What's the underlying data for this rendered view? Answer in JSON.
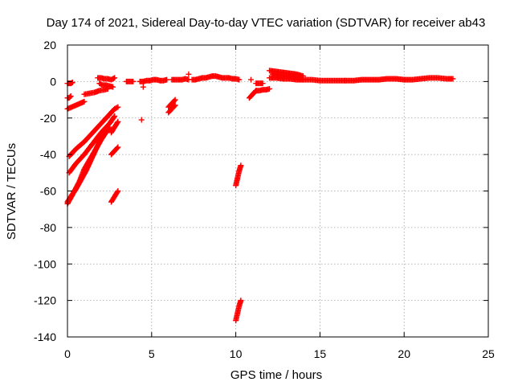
{
  "chart_data": {
    "type": "scatter",
    "title": "Day 174 of 2021, Sidereal Day-to-day VTEC variation (SDTVAR) for receiver ab43",
    "xlabel": "GPS time / hours",
    "ylabel": "SDTVAR / TECUs",
    "xlim": [
      0,
      25
    ],
    "ylim": [
      -140,
      20
    ],
    "xticks": [
      0,
      5,
      10,
      15,
      20,
      25
    ],
    "yticks": [
      20,
      0,
      -20,
      -40,
      -60,
      -80,
      -100,
      -120,
      -140
    ],
    "grid": true,
    "marker": "+",
    "color": "#ff0000",
    "series": [
      {
        "name": "sdtvar",
        "segments": [
          {
            "x": [
              0.0,
              0.1,
              0.2,
              0.3
            ],
            "y": [
              -1,
              -1,
              -1,
              -0.5
            ]
          },
          {
            "x": [
              0.0,
              0.1,
              0.2
            ],
            "y": [
              -9,
              -9,
              -8
            ]
          },
          {
            "x": [
              0.0,
              0.25,
              0.5,
              0.75,
              1.0
            ],
            "y": [
              -15,
              -14,
              -13,
              -12,
              -11
            ]
          },
          {
            "x": [
              0.1,
              0.5,
              1.0,
              1.5,
              2.0,
              2.4,
              2.7
            ],
            "y": [
              -41,
              -37,
              -33,
              -28,
              -23,
              -19,
              -16
            ]
          },
          {
            "x": [
              0.1,
              0.5,
              1.0,
              1.5,
              2.0,
              2.5,
              2.8
            ],
            "y": [
              -50,
              -45,
              -40,
              -34,
              -28,
              -23,
              -19
            ]
          },
          {
            "x": [
              0.0,
              0.3,
              0.7,
              1.0,
              1.5,
              2.0,
              2.5
            ],
            "y": [
              -67,
              -62,
              -55,
              -48,
              -40,
              -32,
              -25
            ]
          },
          {
            "x": [
              0.0,
              0.2,
              0.5,
              0.8,
              1.1,
              1.4,
              1.7,
              2.0
            ],
            "y": [
              -66,
              -63,
              -59,
              -54,
              -49,
              -43,
              -37,
              -31
            ]
          },
          {
            "x": [
              1.0,
              1.3,
              1.6,
              1.9,
              2.2,
              2.4
            ],
            "y": [
              -7,
              -6.5,
              -6,
              -5,
              -4.5,
              -4
            ]
          },
          {
            "x": [
              1.8,
              2.0,
              2.2,
              2.4,
              2.6,
              2.8
            ],
            "y": [
              2,
              2,
              1.5,
              1.5,
              1,
              2
            ]
          },
          {
            "x": [
              1.9,
              2.1,
              2.3,
              2.5,
              2.7
            ],
            "y": [
              -1,
              -2,
              -2,
              -2.5,
              -3
            ]
          },
          {
            "x": [
              2.6,
              2.8,
              3.0
            ],
            "y": [
              -66,
              -63,
              -60
            ]
          },
          {
            "x": [
              2.6,
              2.8,
              3.0
            ],
            "y": [
              -40,
              -38,
              -36
            ]
          },
          {
            "x": [
              2.6,
              2.8,
              3.0
            ],
            "y": [
              -28,
              -25,
              -22
            ]
          },
          {
            "x": [
              2.6,
              2.8,
              3.0
            ],
            "y": [
              -17,
              -15,
              -14
            ]
          },
          {
            "x": [
              3.5,
              3.7,
              3.9
            ],
            "y": [
              0,
              0,
              0
            ]
          },
          {
            "x": [
              4.3,
              4.5,
              4.7,
              4.9,
              5.1,
              5.3,
              5.5,
              5.7,
              5.9
            ],
            "y": [
              0,
              0,
              0.5,
              0.5,
              1,
              1,
              0.5,
              0.5,
              1
            ]
          },
          {
            "x": [
              4.4
            ],
            "y": [
              -21
            ]
          },
          {
            "x": [
              4.5
            ],
            "y": [
              -3
            ]
          },
          {
            "x": [
              6.0,
              6.2,
              6.4
            ],
            "y": [
              -17,
              -15,
              -13
            ]
          },
          {
            "x": [
              6.0,
              6.2,
              6.4
            ],
            "y": [
              -14,
              -12,
              -10
            ]
          },
          {
            "x": [
              6.2,
              6.4,
              6.6,
              6.8,
              7.0,
              7.2
            ],
            "y": [
              1,
              1,
              1,
              1,
              1.5,
              1
            ]
          },
          {
            "x": [
              7.2
            ],
            "y": [
              4
            ]
          },
          {
            "x": [
              7.4,
              7.6,
              7.8,
              8.0,
              8.2,
              8.4,
              8.6,
              8.8,
              9.0,
              9.2,
              9.4,
              9.6,
              9.8,
              10.0,
              10.2
            ],
            "y": [
              1,
              1,
              1.5,
              2,
              2,
              2.5,
              3,
              3,
              2.5,
              2,
              2,
              2,
              1.5,
              1.5,
              1
            ]
          },
          {
            "x": [
              10.0,
              10.1,
              10.2,
              10.3
            ],
            "y": [
              -57,
              -53,
              -49,
              -46
            ]
          },
          {
            "x": [
              10.0,
              10.1,
              10.2,
              10.3
            ],
            "y": [
              -131,
              -127,
              -123,
              -120
            ]
          },
          {
            "x": [
              10.8,
              11.0,
              11.2
            ],
            "y": [
              -9,
              -7,
              -5
            ]
          },
          {
            "x": [
              10.9
            ],
            "y": [
              1
            ]
          },
          {
            "x": [
              11.2,
              11.4,
              11.6,
              11.8,
              12.0
            ],
            "y": [
              -5,
              -5,
              -4.5,
              -4.5,
              -4
            ]
          },
          {
            "x": [
              11.2,
              11.4,
              11.6
            ],
            "y": [
              -1,
              -1,
              -1
            ]
          },
          {
            "x": [
              12.0,
              12.4,
              12.8,
              13.2,
              13.6,
              14.0
            ],
            "y": [
              6,
              5.5,
              5,
              4.5,
              4,
              3
            ]
          },
          {
            "x": [
              12.0,
              12.4,
              12.8,
              13.2,
              13.6,
              14.0
            ],
            "y": [
              2,
              2,
              1.5,
              1.5,
              1,
              1
            ]
          },
          {
            "x": [
              12.2,
              12.6,
              13.0,
              13.4,
              13.8
            ],
            "y": [
              4,
              3.5,
              3,
              2.5,
              2
            ]
          },
          {
            "x": [
              14.0,
              14.5,
              15.0,
              15.5,
              16.0,
              16.5
            ],
            "y": [
              1,
              1,
              0.5,
              0.5,
              0.5,
              0.5
            ]
          },
          {
            "x": [
              16.5,
              17.0,
              17.5,
              18.0,
              18.5,
              19.0,
              19.5,
              20.0
            ],
            "y": [
              0.5,
              0.5,
              1,
              1,
              1,
              1.5,
              1.5,
              1
            ]
          },
          {
            "x": [
              20.0,
              20.5,
              21.0,
              21.5,
              22.0,
              22.5,
              22.9
            ],
            "y": [
              1,
              1,
              1.5,
              2,
              2,
              1.5,
              1.5
            ]
          }
        ]
      }
    ]
  }
}
